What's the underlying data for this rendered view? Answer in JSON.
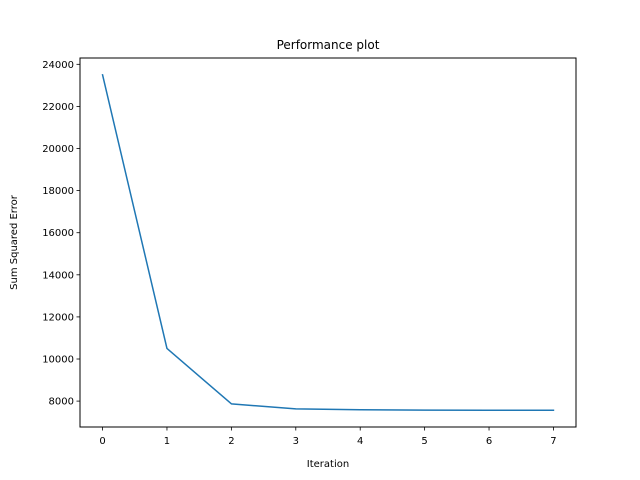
{
  "chart_data": {
    "type": "line",
    "title": "Performance plot",
    "xlabel": "Iteration",
    "ylabel": "Sum Squared Error",
    "x": [
      0,
      1,
      2,
      3,
      4,
      5,
      6,
      7
    ],
    "series": [
      {
        "values": [
          23500,
          10500,
          7870,
          7630,
          7590,
          7570,
          7565,
          7565
        ],
        "color": "#1f77b4"
      }
    ],
    "x_ticks": [
      0,
      1,
      2,
      3,
      4,
      5,
      6,
      7
    ],
    "y_ticks": [
      8000,
      10000,
      12000,
      14000,
      16000,
      18000,
      20000,
      22000,
      24000
    ],
    "xlim": [
      -0.35,
      7.35
    ],
    "ylim": [
      6770,
      24300
    ],
    "grid": false,
    "legend": "none"
  }
}
